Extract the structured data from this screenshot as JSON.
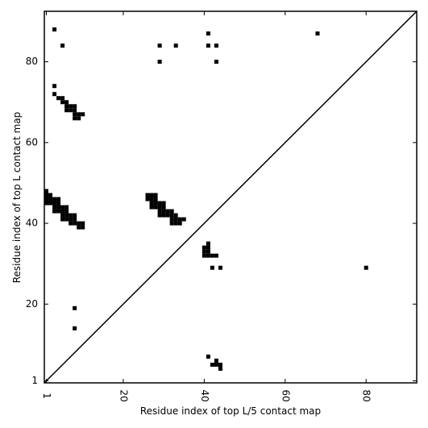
{
  "chart_data": {
    "type": "scatter",
    "xlabel": "Residue index of top L/5 contact map",
    "ylabel": "Residue index of top L contact map",
    "color": "#000000",
    "marker": "square",
    "xlim": [
      0.5,
      92.5
    ],
    "ylim": [
      0.5,
      92.5
    ],
    "xticks": [
      1,
      20,
      40,
      60,
      80
    ],
    "yticks": [
      1,
      20,
      40,
      60,
      80
    ],
    "diagonal": true,
    "x": [
      3,
      5,
      29,
      33,
      41,
      41,
      43,
      29,
      43,
      68,
      3,
      3,
      4,
      5,
      5,
      6,
      6,
      7,
      8,
      6,
      7,
      8,
      8,
      9,
      10,
      8,
      9,
      1,
      1,
      2,
      1,
      2,
      3,
      4,
      1,
      2,
      3,
      4,
      3,
      4,
      5,
      6,
      3,
      4,
      5,
      6,
      5,
      6,
      7,
      8,
      5,
      6,
      7,
      8,
      7,
      8,
      9,
      10,
      9,
      10,
      26,
      27,
      28,
      26,
      27,
      28,
      27,
      28,
      29,
      30,
      27,
      28,
      29,
      30,
      29,
      30,
      31,
      32,
      29,
      30,
      31,
      32,
      33,
      32,
      33,
      34,
      35,
      32,
      33,
      34,
      41,
      40,
      41,
      40,
      41,
      40,
      41,
      42,
      43,
      42,
      44,
      80,
      8,
      8,
      41,
      43,
      42,
      43,
      44,
      44
    ],
    "values": [
      88,
      84,
      84,
      84,
      87,
      84,
      84,
      80,
      80,
      87,
      74,
      72,
      71,
      71,
      70,
      70,
      69,
      69,
      69,
      68,
      68,
      68,
      67,
      67,
      67,
      66,
      66,
      48,
      47,
      47,
      46,
      46,
      46,
      46,
      45,
      45,
      45,
      45,
      44,
      44,
      44,
      44,
      43,
      43,
      43,
      43,
      42,
      42,
      42,
      42,
      41,
      41,
      41,
      41,
      40,
      40,
      40,
      40,
      39,
      39,
      47,
      47,
      47,
      46,
      46,
      46,
      45,
      45,
      45,
      45,
      44,
      44,
      44,
      44,
      43,
      43,
      43,
      43,
      42,
      42,
      42,
      42,
      42,
      41,
      41,
      41,
      41,
      40,
      40,
      40,
      35,
      34,
      34,
      33,
      33,
      32,
      32,
      32,
      32,
      29,
      29,
      29,
      19,
      14,
      7,
      6,
      5,
      5,
      5,
      4
    ]
  }
}
